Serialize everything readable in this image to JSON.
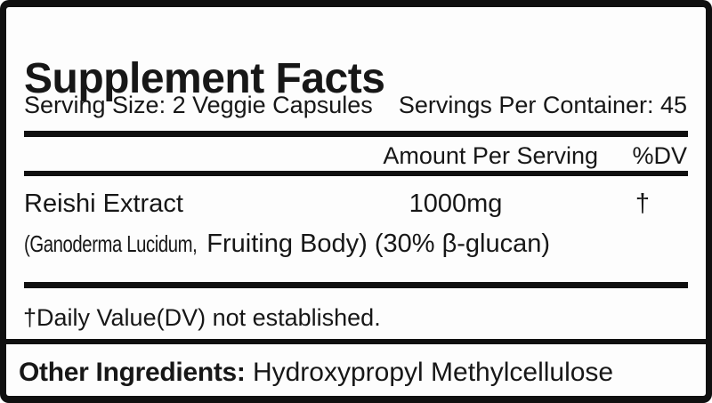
{
  "label": {
    "title": "Supplement Facts",
    "serving": {
      "serving_size": "Serving Size: 2 Veggie Capsules",
      "servings_per_container": "Servings Per Container: 45"
    },
    "columns": {
      "amount_header": "Amount Per Serving",
      "dv_header": "%DV"
    },
    "ingredients": [
      {
        "name": "Reishi Extract",
        "detail_botanical": "(Ganoderma Lucidum,",
        "detail_rest": " Fruiting Body) (30% β-glucan)",
        "amount": "1000mg",
        "dv": "†"
      }
    ],
    "footnote": "†Daily Value(DV) not established.",
    "other_ingredients": {
      "label": "Other Ingredients:",
      "value": " Hydroxypropyl Methylcellulose"
    },
    "colors": {
      "text": "#171717",
      "border": "#101010",
      "background": "#fdfdfd"
    }
  }
}
